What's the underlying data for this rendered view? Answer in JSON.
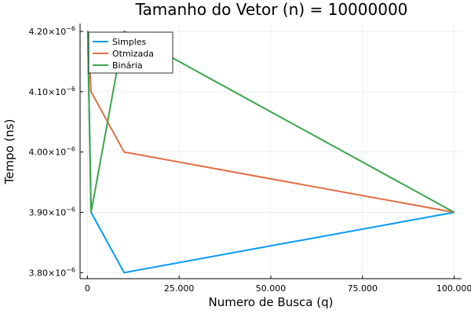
{
  "chart_data": {
    "type": "line",
    "title": "Tamanho do Vetor (n) = 10000000",
    "xlabel": "Numero de Busca (q)",
    "ylabel": "Tempo (ns)",
    "xlim": [
      -2000,
      102000
    ],
    "ylim": [
      3.79e-06,
      4.213e-06
    ],
    "grid": true,
    "legend_position": "top-left",
    "x_ticks": [
      {
        "value": 0,
        "label": "0"
      },
      {
        "value": 25000,
        "label": "25.000"
      },
      {
        "value": 50000,
        "label": "50.000"
      },
      {
        "value": 75000,
        "label": "75.000"
      },
      {
        "value": 100000,
        "label": "100.000"
      }
    ],
    "y_ticks": [
      {
        "value": 3.8e-06,
        "mantissa": "3.80×10",
        "exponent": "−6"
      },
      {
        "value": 3.9e-06,
        "mantissa": "3.90×10",
        "exponent": "−6"
      },
      {
        "value": 4e-06,
        "mantissa": "4.00×10",
        "exponent": "−6"
      },
      {
        "value": 4.1e-06,
        "mantissa": "4.10×10",
        "exponent": "−6"
      },
      {
        "value": 4.2e-06,
        "mantissa": "4.20×10",
        "exponent": "−6"
      }
    ],
    "series": [
      {
        "name": "Simples",
        "color": "#009af9",
        "x": [
          10,
          100,
          1000,
          10000,
          100000
        ],
        "y": [
          4.2e-06,
          4.2e-06,
          3.9e-06,
          3.8e-06,
          3.9e-06
        ]
      },
      {
        "name": "Otmizada",
        "color": "#e26f46",
        "x": [
          10,
          100,
          1000,
          10000,
          100000
        ],
        "y": [
          4.2e-06,
          4.2e-06,
          4.1e-06,
          4e-06,
          3.9e-06
        ]
      },
      {
        "name": "Binária",
        "color": "#3da44d",
        "x": [
          10,
          100,
          1000,
          10000,
          100000
        ],
        "y": [
          4.2e-06,
          4.2e-06,
          3.9e-06,
          4.2e-06,
          3.9e-06
        ]
      }
    ]
  }
}
